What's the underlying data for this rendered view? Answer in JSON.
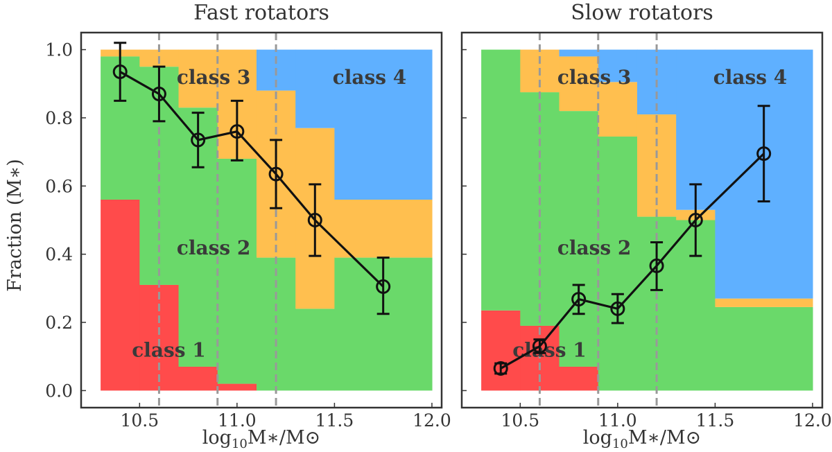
{
  "colors": {
    "class1": "#ff4b4b",
    "class2": "#6ad96a",
    "class3": "#ffbf4f",
    "class4": "#5fb0ff",
    "line": "#111111",
    "vline": "#999999"
  },
  "ylabel": "Fraction (M∗)",
  "xlabel_base": "log",
  "xlabel_sub": "10",
  "xlabel_rest": "M∗/M⊙",
  "x_ticks": [
    "10.5",
    "11.0",
    "11.5",
    "12.0"
  ],
  "y_ticks": [
    "0.0",
    "0.2",
    "0.4",
    "0.6",
    "0.8",
    "1.0"
  ],
  "chart_data": [
    {
      "type": "area",
      "title": "Fast rotators",
      "xlim": [
        10.2,
        12.05
      ],
      "ylim": [
        -0.05,
        1.05
      ],
      "vlines": [
        10.6,
        10.9,
        11.2
      ],
      "bins": [
        {
          "x0": 10.3,
          "x1": 10.5,
          "c1": 0.56,
          "c2": 0.98,
          "c3": 1.0
        },
        {
          "x0": 10.5,
          "x1": 10.7,
          "c1": 0.31,
          "c2": 0.95,
          "c3": 1.0
        },
        {
          "x0": 10.7,
          "x1": 10.9,
          "c1": 0.07,
          "c2": 0.83,
          "c3": 1.0
        },
        {
          "x0": 10.9,
          "x1": 11.1,
          "c1": 0.02,
          "c2": 0.68,
          "c3": 1.0
        },
        {
          "x0": 11.1,
          "x1": 11.3,
          "c1": 0.0,
          "c2": 0.39,
          "c3": 0.88
        },
        {
          "x0": 11.3,
          "x1": 11.5,
          "c1": 0.0,
          "c2": 0.24,
          "c3": 0.77
        },
        {
          "x0": 11.5,
          "x1": 12.0,
          "c1": 0.0,
          "c2": 0.39,
          "c3": 0.56
        }
      ],
      "points": [
        {
          "x": 10.4,
          "y": 0.935,
          "lo": 0.85,
          "hi": 1.02
        },
        {
          "x": 10.6,
          "y": 0.87,
          "lo": 0.79,
          "hi": 0.95
        },
        {
          "x": 10.8,
          "y": 0.735,
          "lo": 0.655,
          "hi": 0.815
        },
        {
          "x": 11.0,
          "y": 0.76,
          "lo": 0.675,
          "hi": 0.85
        },
        {
          "x": 11.2,
          "y": 0.635,
          "lo": 0.535,
          "hi": 0.735
        },
        {
          "x": 11.4,
          "y": 0.5,
          "lo": 0.395,
          "hi": 0.605
        },
        {
          "x": 11.75,
          "y": 0.305,
          "lo": 0.225,
          "hi": 0.39
        }
      ],
      "class_labels": [
        {
          "text": "class 1",
          "x": 10.65,
          "y": 0.12
        },
        {
          "text": "class 2",
          "x": 10.88,
          "y": 0.42
        },
        {
          "text": "class 3",
          "x": 10.88,
          "y": 0.92
        },
        {
          "text": "class 4",
          "x": 11.68,
          "y": 0.92
        }
      ]
    },
    {
      "type": "area",
      "title": "Slow rotators",
      "xlim": [
        10.2,
        12.05
      ],
      "ylim": [
        -0.05,
        1.05
      ],
      "vlines": [
        10.6,
        10.9,
        11.2
      ],
      "bins": [
        {
          "x0": 10.3,
          "x1": 10.5,
          "c1": 0.235,
          "c2": 1.0,
          "c3": 1.0
        },
        {
          "x0": 10.5,
          "x1": 10.7,
          "c1": 0.19,
          "c2": 0.875,
          "c3": 1.0
        },
        {
          "x0": 10.7,
          "x1": 10.9,
          "c1": 0.07,
          "c2": 0.82,
          "c3": 0.98
        },
        {
          "x0": 10.9,
          "x1": 11.1,
          "c1": 0.0,
          "c2": 0.745,
          "c3": 0.905
        },
        {
          "x0": 11.1,
          "x1": 11.3,
          "c1": 0.0,
          "c2": 0.51,
          "c3": 0.81
        },
        {
          "x0": 11.3,
          "x1": 11.5,
          "c1": 0.0,
          "c2": 0.5,
          "c3": 0.53
        },
        {
          "x0": 11.5,
          "x1": 12.0,
          "c1": 0.0,
          "c2": 0.245,
          "c3": 0.27
        }
      ],
      "points": [
        {
          "x": 10.4,
          "y": 0.065,
          "lo": 0.05,
          "hi": 0.08
        },
        {
          "x": 10.6,
          "y": 0.13,
          "lo": 0.11,
          "hi": 0.15
        },
        {
          "x": 10.8,
          "y": 0.268,
          "lo": 0.225,
          "hi": 0.31
        },
        {
          "x": 11.0,
          "y": 0.24,
          "lo": 0.198,
          "hi": 0.283
        },
        {
          "x": 11.2,
          "y": 0.366,
          "lo": 0.295,
          "hi": 0.435
        },
        {
          "x": 11.4,
          "y": 0.5,
          "lo": 0.395,
          "hi": 0.605
        },
        {
          "x": 11.75,
          "y": 0.695,
          "lo": 0.555,
          "hi": 0.835
        }
      ],
      "class_labels": [
        {
          "text": "class 1",
          "x": 10.65,
          "y": 0.12
        },
        {
          "text": "class 2",
          "x": 10.88,
          "y": 0.42
        },
        {
          "text": "class 3",
          "x": 10.88,
          "y": 0.92
        },
        {
          "text": "class 4",
          "x": 11.68,
          "y": 0.92
        }
      ]
    }
  ]
}
